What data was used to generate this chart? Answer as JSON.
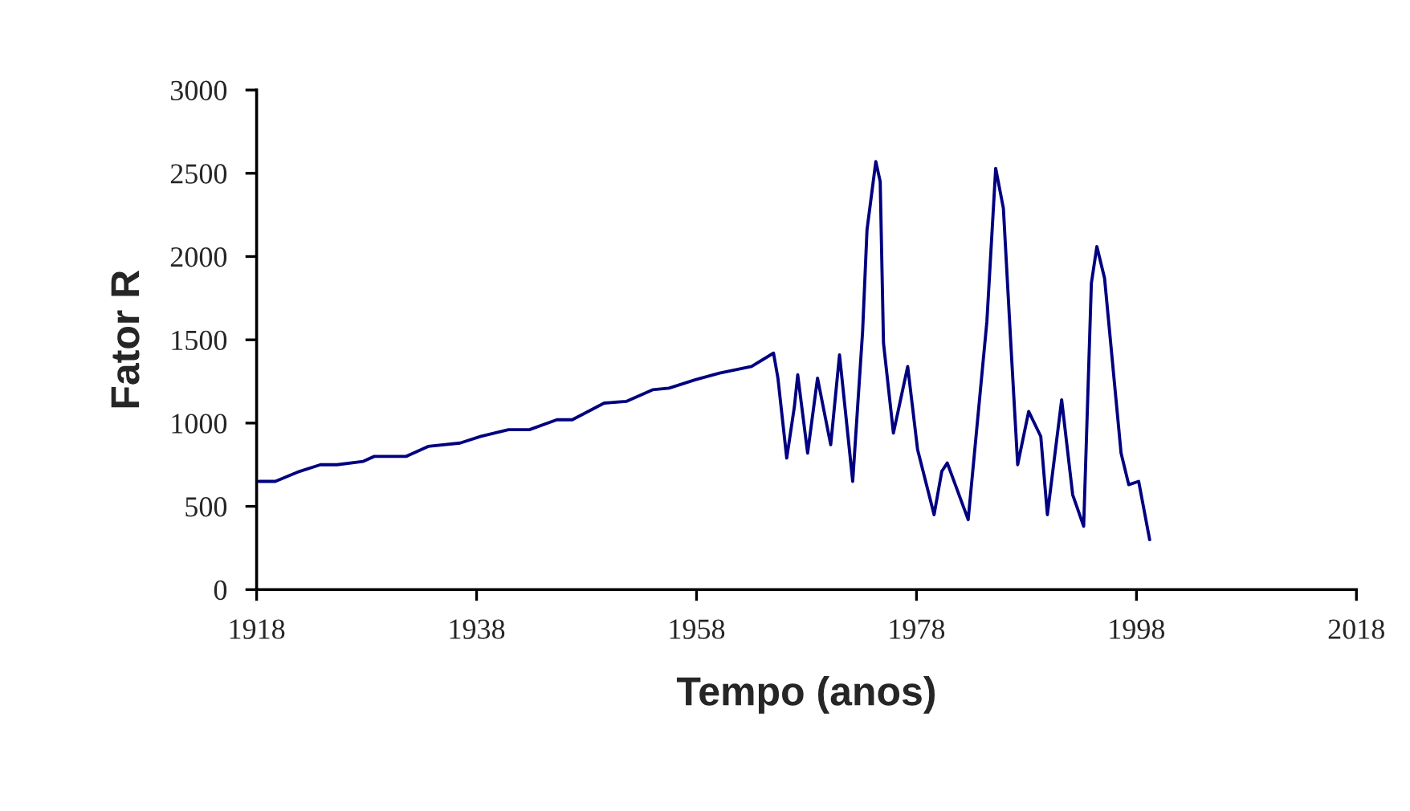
{
  "chart_data": {
    "type": "line",
    "xlabel": "Tempo (anos)",
    "ylabel": "Fator R",
    "xlim": [
      1918,
      2018
    ],
    "xticks": [
      1918,
      1938,
      1958,
      1978,
      1998,
      2018
    ],
    "ylim": [
      0,
      3000
    ],
    "yticks": [
      0,
      500,
      1000,
      1500,
      2000,
      2500,
      3000
    ],
    "grid": false,
    "marker": "none",
    "line_style": "solid",
    "series": [
      {
        "color": "#000080",
        "x": [
          1918.2,
          1919.7,
          1921.9,
          1923.8,
          1925.3,
          1927.7,
          1928.7,
          1931.6,
          1933.6,
          1936.5,
          1938.4,
          1940.9,
          1942.8,
          1945.3,
          1946.7,
          1949.6,
          1951.6,
          1954.0,
          1955.5,
          1957.9,
          1960.1,
          1963.0,
          1965.0,
          1965.4,
          1966.2,
          1966.9,
          1967.2,
          1968.1,
          1969.0,
          1970.2,
          1971.0,
          1972.2,
          1973.1,
          1973.5,
          1974.3,
          1974.7,
          1975.0,
          1975.9,
          1977.2,
          1978.1,
          1979.6,
          1980.3,
          1980.8,
          1982.7,
          1984.4,
          1985.2,
          1985.9,
          1986.6,
          1987.2,
          1988.2,
          1989.3,
          1989.9,
          1991.2,
          1992.2,
          1993.2,
          1993.9,
          1994.4,
          1995.1,
          1996.6,
          1997.3,
          1998.2,
          1999.2
        ],
        "values": [
          650,
          650,
          710,
          750,
          750,
          770,
          800,
          800,
          860,
          880,
          920,
          960,
          960,
          1020,
          1020,
          1120,
          1130,
          1200,
          1210,
          1260,
          1300,
          1340,
          1420,
          1270,
          790,
          1100,
          1290,
          820,
          1270,
          870,
          1410,
          650,
          1550,
          2160,
          2570,
          2450,
          1480,
          940,
          1340,
          840,
          450,
          710,
          760,
          420,
          1610,
          2530,
          2290,
          1450,
          750,
          1070,
          920,
          450,
          1140,
          570,
          380,
          1840,
          2060,
          1870,
          820,
          630,
          650,
          300
        ]
      }
    ]
  }
}
